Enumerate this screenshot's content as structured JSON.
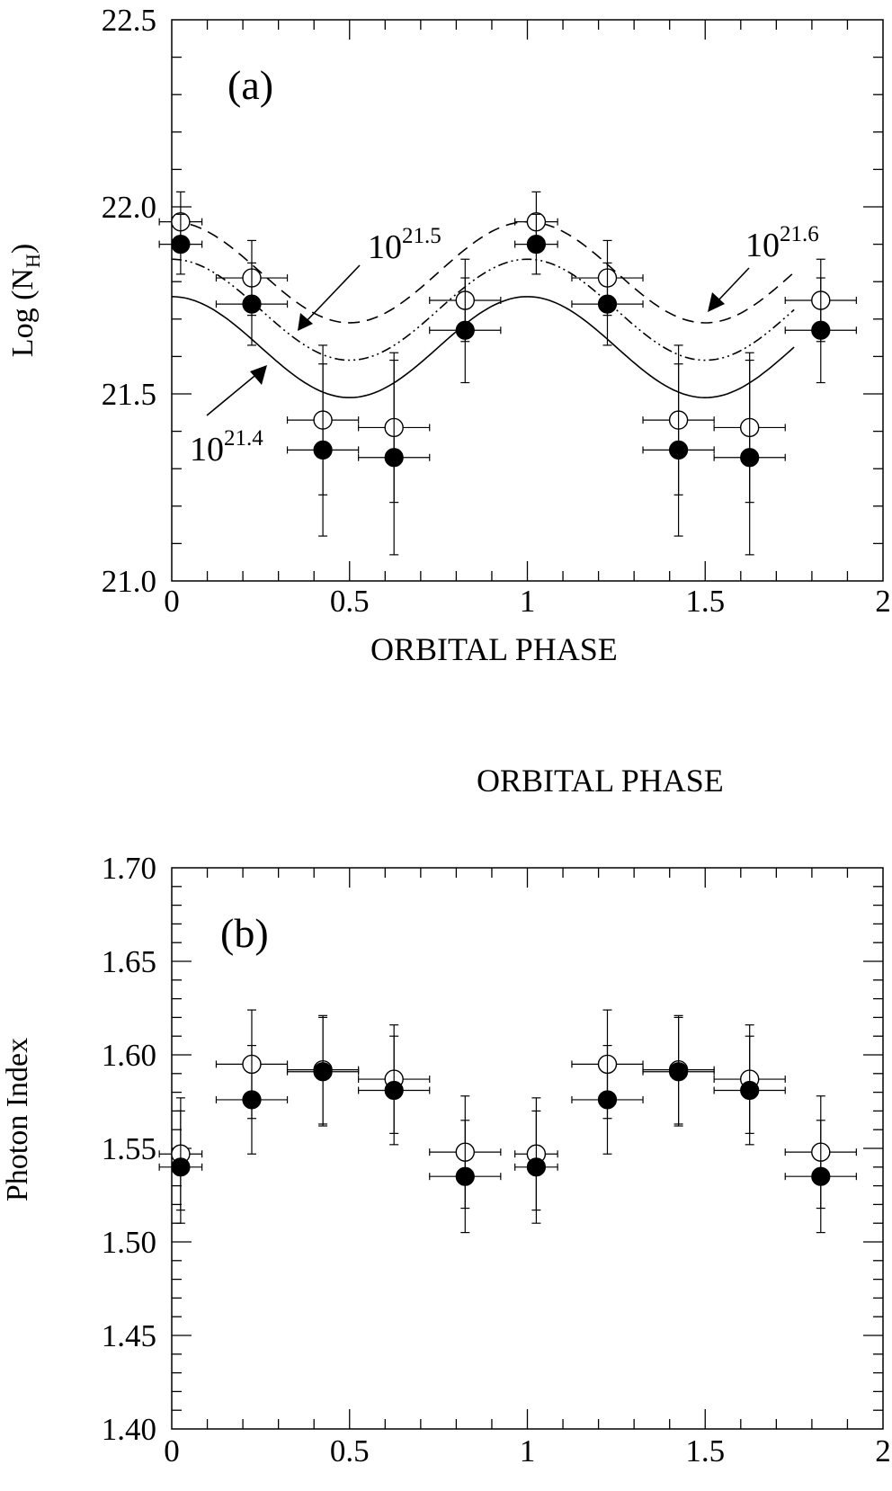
{
  "chart_data": [
    {
      "panel": "(a)",
      "type": "scatter",
      "xlabel": "ORBITAL PHASE",
      "ylabel_text": "Log (N",
      "ylabel_sub": "H",
      "ylabel_close": ")",
      "xlim": [
        0,
        2
      ],
      "ylim": [
        21.0,
        22.5
      ],
      "xticks": [
        0,
        0.5,
        1,
        1.5,
        2
      ],
      "xtick_labels": [
        "0",
        "0.5",
        "1",
        "1.5",
        "2"
      ],
      "yticks": [
        21.0,
        21.5,
        22.0,
        22.5
      ],
      "ytick_labels": [
        "21.0",
        "21.5",
        "22.0",
        "22.5"
      ],
      "x_minor_step": 0.1,
      "y_minor_step": 0.1,
      "series": [
        {
          "name": "open",
          "marker": "open-circle",
          "x": [
            0.025,
            0.225,
            0.425,
            0.625,
            0.825,
            1.025,
            1.225,
            1.425,
            1.625,
            1.825
          ],
          "y": [
            21.96,
            21.81,
            21.43,
            21.41,
            21.75,
            21.96,
            21.81,
            21.43,
            21.41,
            21.75
          ],
          "xerr": [
            0.06,
            0.1,
            0.1,
            0.1,
            0.1,
            0.06,
            0.1,
            0.1,
            0.1,
            0.1
          ],
          "yerr": [
            0.08,
            0.1,
            0.2,
            0.2,
            0.11,
            0.08,
            0.1,
            0.2,
            0.2,
            0.11
          ]
        },
        {
          "name": "filled",
          "marker": "filled-circle",
          "x": [
            0.025,
            0.225,
            0.425,
            0.625,
            0.825,
            1.025,
            1.225,
            1.425,
            1.625,
            1.825
          ],
          "y": [
            21.9,
            21.74,
            21.35,
            21.33,
            21.67,
            21.9,
            21.74,
            21.35,
            21.33,
            21.67
          ],
          "xerr": [
            0.06,
            0.1,
            0.1,
            0.1,
            0.1,
            0.06,
            0.1,
            0.1,
            0.1,
            0.1
          ],
          "yerr": [
            0.08,
            0.11,
            0.23,
            0.26,
            0.14,
            0.08,
            0.11,
            0.23,
            0.26,
            0.14
          ]
        }
      ],
      "model_curves": [
        {
          "name": "model-21.4",
          "style": "solid",
          "mean": 21.625,
          "amplitude": 0.135,
          "x_range": [
            0,
            1.75
          ],
          "label_base": "10",
          "label_exp": "21.4"
        },
        {
          "name": "model-21.5",
          "style": "dash-dot",
          "mean": 21.725,
          "amplitude": 0.135,
          "x_range": [
            0,
            1.75
          ],
          "label_base": "10",
          "label_exp": "21.5"
        },
        {
          "name": "model-21.6",
          "style": "dash",
          "mean": 21.825,
          "amplitude": 0.135,
          "x_range": [
            0,
            1.75
          ],
          "label_base": "10",
          "label_exp": "21.6"
        }
      ]
    },
    {
      "panel": "(b)",
      "type": "scatter",
      "title_above": "ORBITAL PHASE",
      "xlabel": "",
      "ylabel": "Photon Index",
      "xlim": [
        0,
        2
      ],
      "ylim": [
        1.4,
        1.7
      ],
      "xticks": [
        0,
        0.5,
        1,
        1.5,
        2
      ],
      "xtick_labels": [
        "0",
        "0.5",
        "1",
        "1.5",
        "2"
      ],
      "yticks": [
        1.4,
        1.45,
        1.5,
        1.55,
        1.6,
        1.65,
        1.7
      ],
      "ytick_labels": [
        "1.40",
        "1.45",
        "1.50",
        "1.55",
        "1.60",
        "1.65",
        "1.70"
      ],
      "x_minor_step": 0.1,
      "y_minor_step": 0.01,
      "series": [
        {
          "name": "open",
          "marker": "open-circle",
          "x": [
            0.025,
            0.225,
            0.425,
            0.625,
            0.825,
            1.025,
            1.225,
            1.425,
            1.625,
            1.825
          ],
          "y": [
            1.547,
            1.595,
            1.592,
            1.587,
            1.548,
            1.547,
            1.595,
            1.592,
            1.587,
            1.548
          ],
          "xerr": [
            0.06,
            0.1,
            0.1,
            0.1,
            0.1,
            0.06,
            0.1,
            0.1,
            0.1,
            0.1
          ],
          "yerr": [
            0.03,
            0.029,
            0.029,
            0.029,
            0.03,
            0.03,
            0.029,
            0.029,
            0.029,
            0.03
          ]
        },
        {
          "name": "filled",
          "marker": "filled-circle",
          "x": [
            0.025,
            0.225,
            0.425,
            0.625,
            0.825,
            1.025,
            1.225,
            1.425,
            1.625,
            1.825
          ],
          "y": [
            1.54,
            1.576,
            1.591,
            1.581,
            1.535,
            1.54,
            1.576,
            1.591,
            1.581,
            1.535
          ],
          "xerr": [
            0.06,
            0.1,
            0.1,
            0.1,
            0.1,
            0.06,
            0.1,
            0.1,
            0.1,
            0.1
          ],
          "yerr": [
            0.03,
            0.029,
            0.029,
            0.029,
            0.03,
            0.03,
            0.029,
            0.029,
            0.029,
            0.03
          ]
        }
      ]
    }
  ]
}
